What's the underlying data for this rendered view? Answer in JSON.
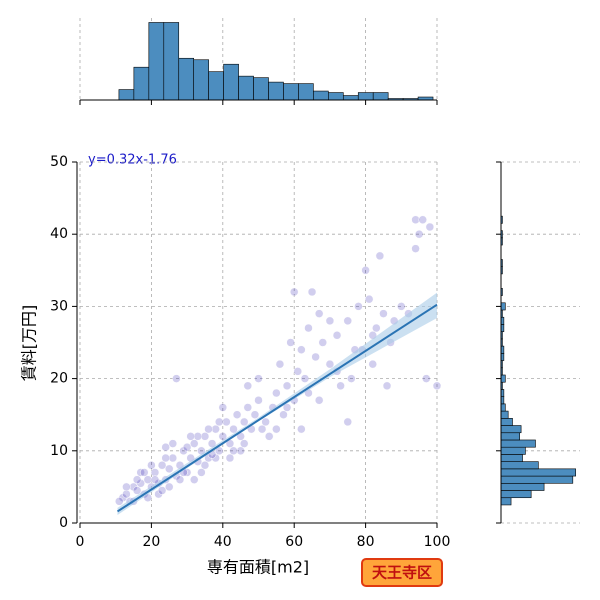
{
  "chart_data": [
    {
      "type": "scatter",
      "xlabel": "専有面積[m2]",
      "ylabel": "賃料[万円]",
      "annotation": "y=0.32x-1.76",
      "xlim": [
        0,
        100
      ],
      "ylim": [
        0,
        50
      ],
      "xticks": [
        0,
        20,
        40,
        60,
        80,
        100
      ],
      "yticks": [
        0,
        10,
        20,
        30,
        40,
        50
      ],
      "grid": true,
      "color": "#2c1fb0",
      "alpha": 0.22,
      "x": [
        12,
        13,
        14,
        15,
        16,
        17,
        18,
        19,
        20,
        21,
        22,
        23,
        24,
        25,
        26,
        27,
        28,
        29,
        30,
        31,
        32,
        33,
        34,
        35,
        36,
        37,
        38,
        39,
        40,
        41,
        42,
        43,
        44,
        45,
        46,
        47,
        48,
        49,
        50,
        52,
        54,
        55,
        57,
        58,
        60,
        61,
        62,
        63,
        64,
        65,
        66,
        67,
        68,
        70,
        72,
        73,
        75,
        76,
        78,
        79,
        80,
        81,
        82,
        84,
        85,
        86,
        88,
        90,
        94,
        95,
        96,
        97,
        100,
        15,
        17,
        19,
        20,
        22,
        24,
        25,
        26,
        28,
        30,
        32,
        33,
        35,
        36,
        38,
        40,
        42,
        45,
        47,
        50,
        53,
        56,
        59,
        62,
        27,
        70,
        75,
        82,
        11,
        13,
        16,
        18,
        21,
        23,
        24,
        29,
        31,
        34,
        37,
        39,
        43,
        46,
        51,
        55,
        58,
        60,
        64,
        67,
        72,
        77,
        83,
        87,
        92,
        94,
        98
      ],
      "y": [
        3.5,
        4,
        3,
        5,
        4.5,
        5.5,
        4,
        6,
        5,
        7,
        5.5,
        8,
        6,
        7.5,
        9,
        6.5,
        8,
        10,
        7,
        9,
        11,
        8.5,
        10,
        12,
        9,
        11,
        13,
        10,
        12,
        14,
        11,
        13,
        15,
        12,
        14,
        16,
        13,
        15,
        17,
        14,
        16,
        18,
        15,
        19,
        17,
        21,
        13,
        20,
        27,
        32,
        23,
        17,
        25,
        22,
        26,
        19,
        28,
        20,
        30,
        24,
        35,
        31,
        26,
        37,
        29,
        19,
        28,
        30,
        42,
        40,
        42,
        20,
        19,
        3,
        7,
        3.5,
        8,
        4,
        9,
        5,
        11,
        6,
        10.5,
        6,
        12,
        8,
        13,
        9,
        16,
        9,
        10,
        19,
        20,
        12,
        22,
        25,
        24,
        20,
        28,
        14,
        22,
        3,
        5,
        6,
        7,
        6,
        4.5,
        10.5,
        7,
        12,
        7,
        9.5,
        14,
        10,
        11,
        13,
        13,
        16,
        32,
        18,
        29,
        21,
        24,
        27,
        25,
        29,
        38,
        41
      ],
      "regression": {
        "color": "#2a74b4",
        "x": [
          10.5,
          100
        ],
        "y": [
          1.6,
          30.24
        ]
      },
      "ci": {
        "color": "#a9cbe8",
        "x": [
          10.5,
          30,
          50,
          70,
          100
        ],
        "lower": [
          1.1,
          7.6,
          14.1,
          20.2,
          28.4
        ],
        "upper": [
          2.1,
          8.3,
          14.6,
          21.3,
          31.9
        ]
      }
    },
    {
      "type": "histogram",
      "orientation": "vertical",
      "color": "#4c8dbf",
      "xlim": [
        0,
        100
      ],
      "xticks": [
        0,
        20,
        40,
        60,
        80,
        100
      ],
      "ylim": [
        0,
        55
      ],
      "grid": true,
      "bins": [
        10.9,
        15.09,
        19.28,
        23.47,
        27.66,
        31.85,
        36.04,
        40.23,
        44.42,
        48.61,
        52.8,
        56.99,
        61.18,
        65.37,
        69.56,
        73.75,
        77.94,
        82.13,
        86.32,
        90.51,
        94.7,
        98.89
      ],
      "counts": [
        7,
        22,
        52,
        52,
        28,
        27,
        19,
        24,
        16,
        15,
        12,
        11,
        11,
        6,
        5,
        3,
        5,
        5,
        1,
        1,
        2
      ]
    },
    {
      "type": "histogram",
      "orientation": "horizontal",
      "color": "#4c8dbf",
      "ylim": [
        0,
        50
      ],
      "yticks": [
        0,
        10,
        20,
        30,
        40,
        50
      ],
      "xlim": [
        0,
        55
      ],
      "grid": true,
      "bins": [
        2.5,
        3.5,
        4.5,
        5.5,
        6.5,
        7.5,
        8.5,
        9.5,
        10.5,
        11.5,
        12.5,
        13.5,
        14.5,
        15.5,
        16.5,
        17.5,
        18.5,
        19.5,
        20.5,
        21.5,
        22.5,
        23.5,
        24.5,
        25.5,
        26.5,
        27.5,
        28.5,
        29.5,
        30.5,
        31.5,
        32.5,
        33.5,
        34.5,
        35.5,
        36.5,
        37.5,
        38.5,
        39.5,
        40.5,
        41.5,
        42.5
      ],
      "counts": [
        7,
        21,
        30,
        50,
        52,
        26,
        15,
        17,
        24,
        13,
        14,
        8,
        5,
        3,
        2,
        2,
        1,
        3,
        1,
        1,
        2,
        2,
        1,
        1,
        2,
        2,
        1,
        3,
        0,
        1,
        0,
        0,
        1,
        1,
        0,
        0,
        1,
        1,
        0,
        1
      ]
    }
  ],
  "badge": "天王寺区"
}
